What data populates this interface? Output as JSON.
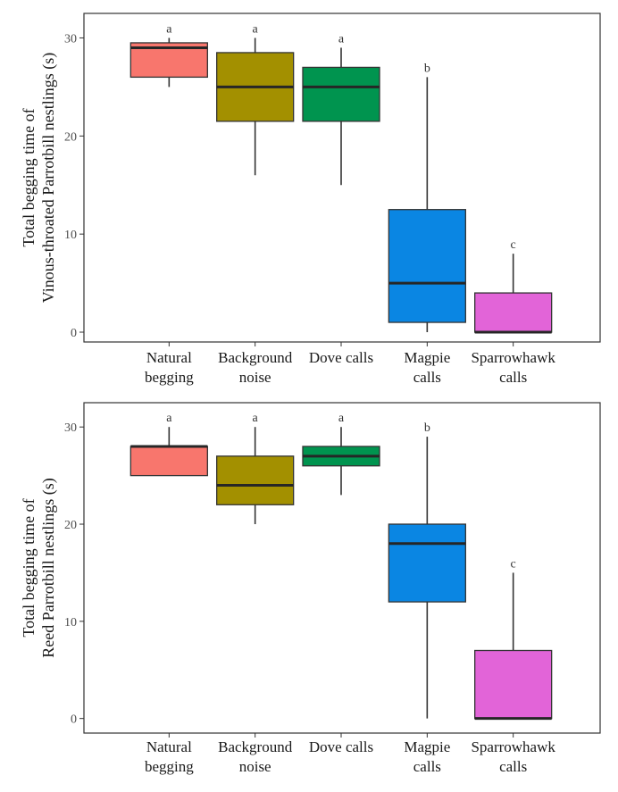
{
  "chart_data": [
    {
      "type": "box",
      "ylabel": [
        "Total begging time of",
        "Vinous-throated Parrotbill nestlings (s)"
      ],
      "xlabel": "",
      "ylim": [
        -1,
        32.5
      ],
      "yticks": [
        0,
        10,
        20,
        30
      ],
      "grid": false,
      "categories": [
        [
          "Natural",
          "begging"
        ],
        [
          "Background",
          "noise"
        ],
        [
          "Dove calls"
        ],
        [
          "Magpie",
          "calls"
        ],
        [
          "Sparrowhawk",
          "calls"
        ]
      ],
      "colors": [
        "#F8766D",
        "#A39000",
        "#00944F",
        "#0A86E3",
        "#E264D8"
      ],
      "boxes": [
        {
          "min": 25,
          "q1": 26,
          "median": 29,
          "q3": 29.5,
          "max": 30
        },
        {
          "min": 16,
          "q1": 21.5,
          "median": 25,
          "q3": 28.5,
          "max": 30
        },
        {
          "min": 15,
          "q1": 21.5,
          "median": 25,
          "q3": 27,
          "max": 29
        },
        {
          "min": 0,
          "q1": 1,
          "median": 5,
          "q3": 12.5,
          "max": 26
        },
        {
          "min": 0,
          "q1": 0,
          "median": 0,
          "q3": 4,
          "max": 8
        }
      ],
      "significance": [
        "a",
        "a",
        "a",
        "b",
        "c"
      ]
    },
    {
      "type": "box",
      "ylabel": [
        "Total begging time of",
        "Reed Parrotbill nestlings (s)"
      ],
      "xlabel": "",
      "ylim": [
        -1.5,
        32.5
      ],
      "yticks": [
        0,
        10,
        20,
        30
      ],
      "grid": false,
      "categories": [
        [
          "Natural",
          "begging"
        ],
        [
          "Background",
          "noise"
        ],
        [
          "Dove calls"
        ],
        [
          "Magpie",
          "calls"
        ],
        [
          "Sparrowhawk",
          "calls"
        ]
      ],
      "colors": [
        "#F8766D",
        "#A39000",
        "#00944F",
        "#0A86E3",
        "#E264D8"
      ],
      "boxes": [
        {
          "min": 25,
          "q1": 25,
          "median": 28,
          "q3": 28,
          "max": 30
        },
        {
          "min": 20,
          "q1": 22,
          "median": 24,
          "q3": 27,
          "max": 30
        },
        {
          "min": 23,
          "q1": 26,
          "median": 27,
          "q3": 28,
          "max": 30
        },
        {
          "min": 0,
          "q1": 12,
          "median": 18,
          "q3": 20,
          "max": 29
        },
        {
          "min": 0,
          "q1": 0,
          "median": 0,
          "q3": 7,
          "max": 15
        }
      ],
      "significance": [
        "a",
        "a",
        "a",
        "b",
        "c"
      ]
    }
  ]
}
